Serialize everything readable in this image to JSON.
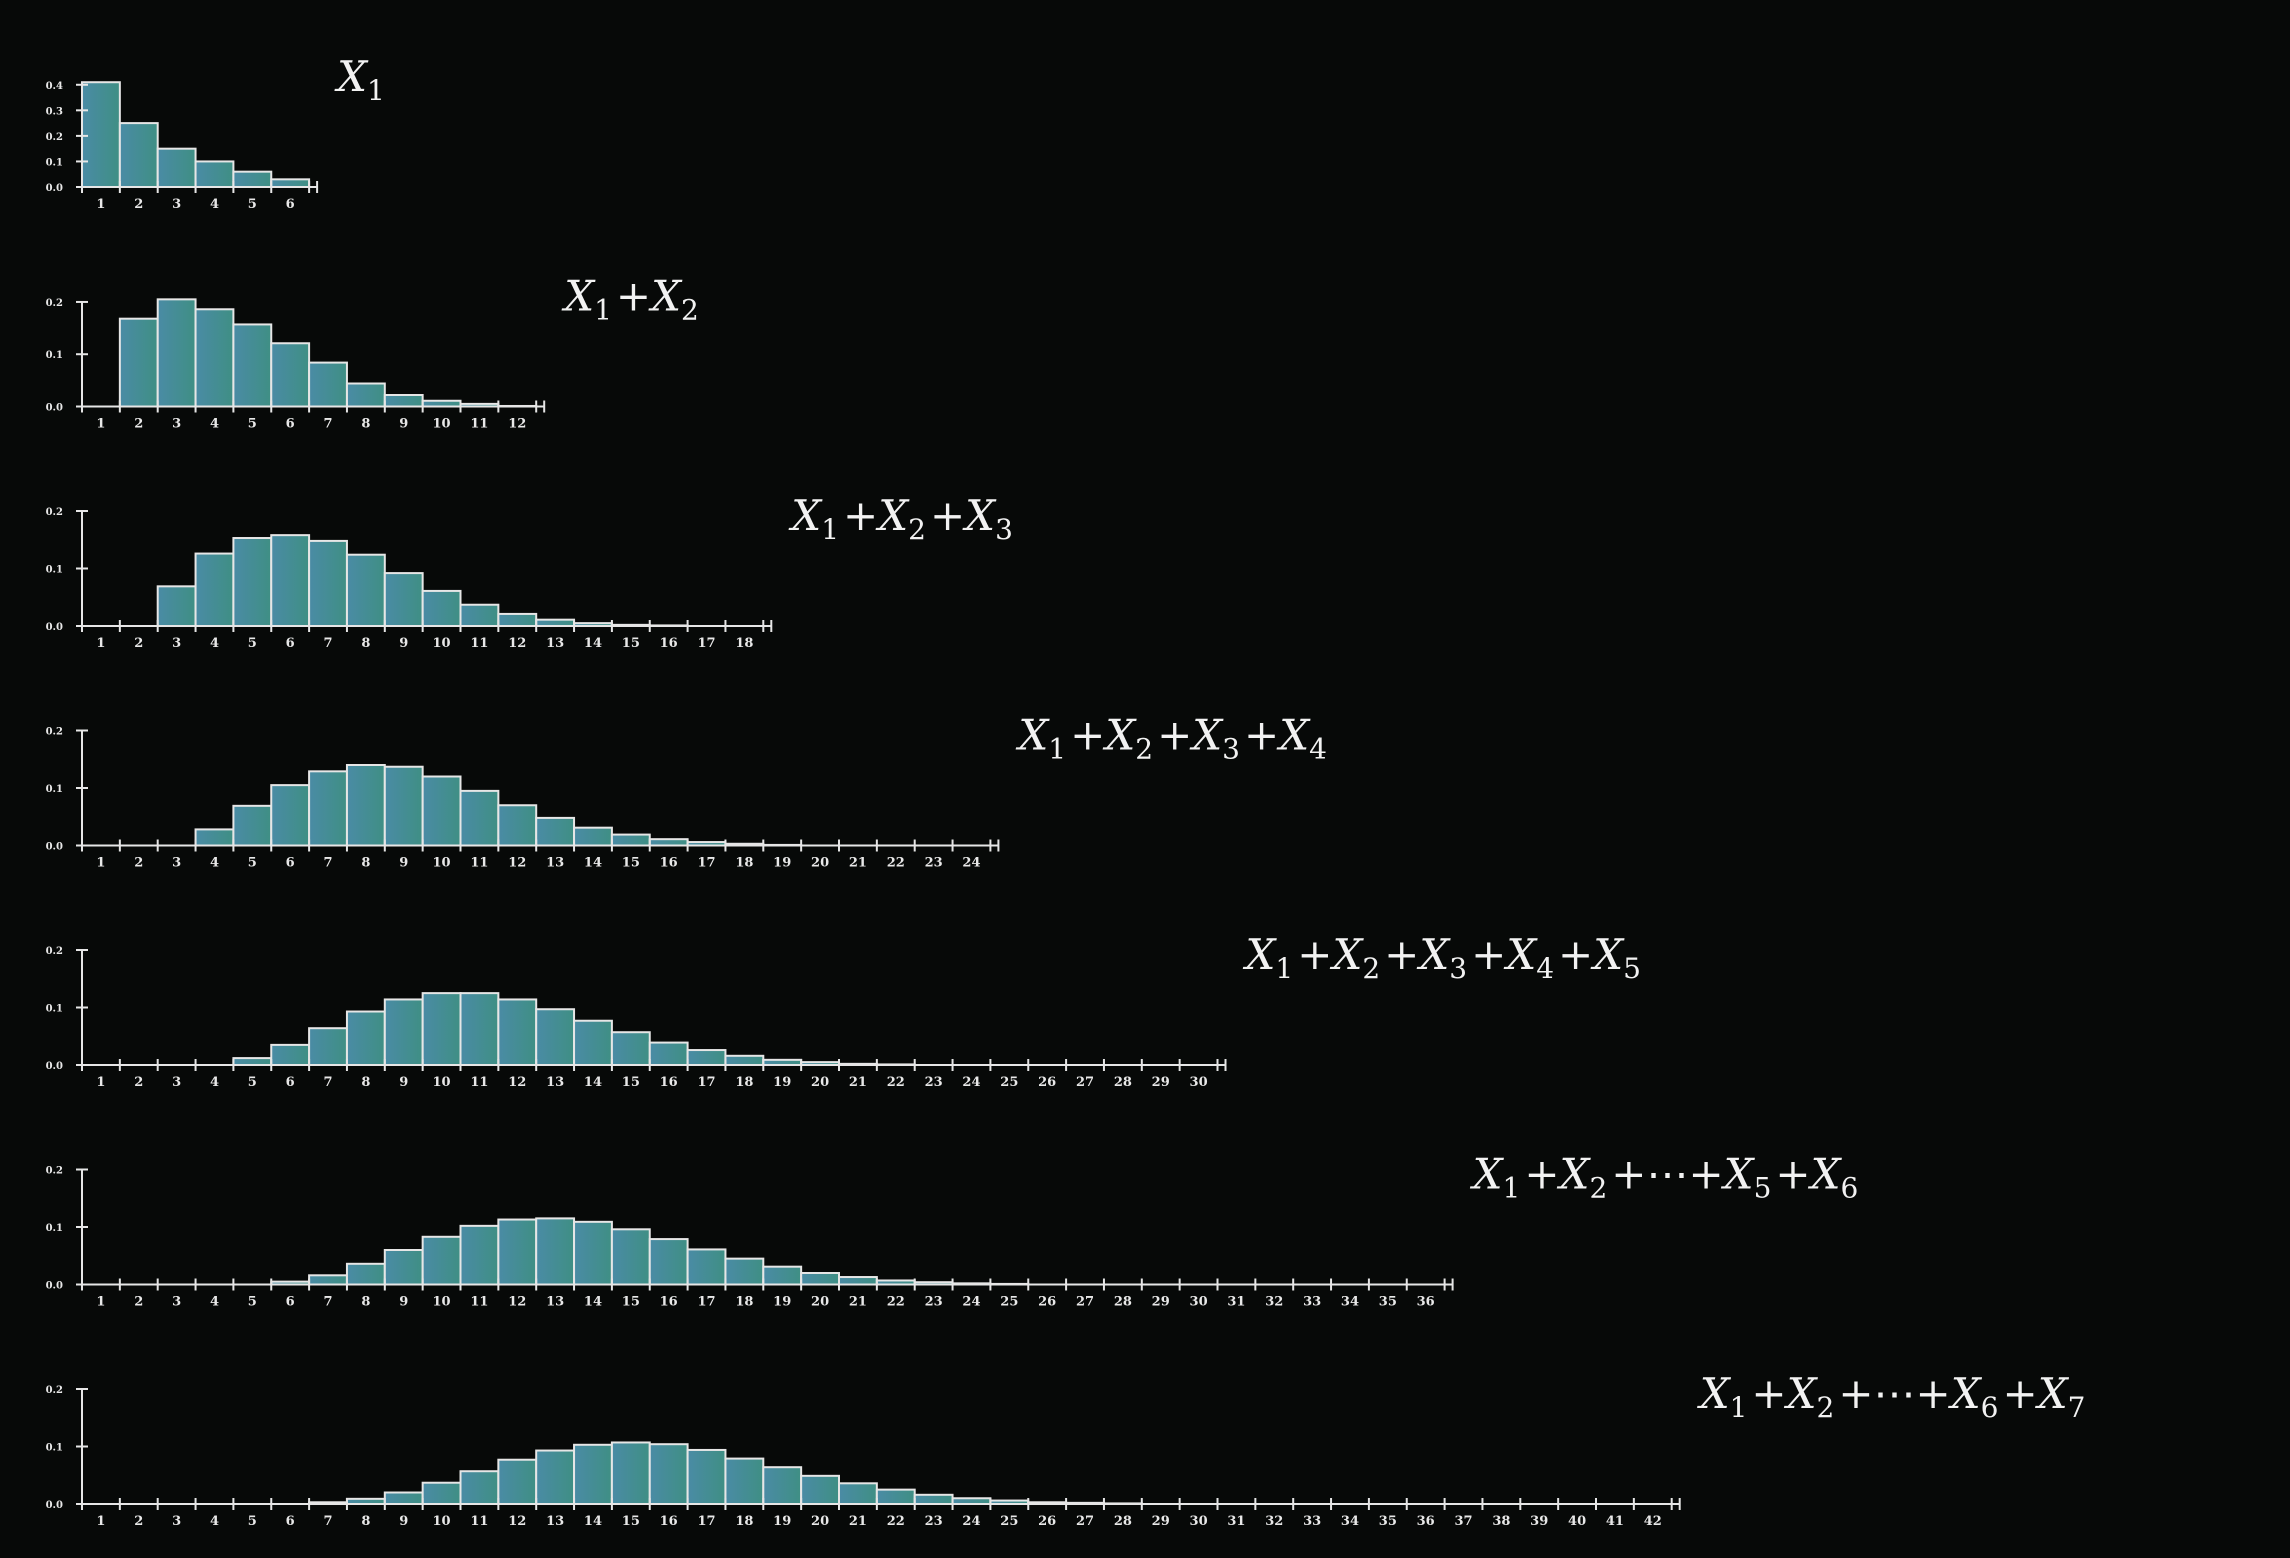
{
  "chart_data": [
    {
      "type": "bar",
      "title": "X₁",
      "title_parts": [
        {
          "t": "X",
          "k": "var"
        },
        {
          "t": "1",
          "k": "sub"
        }
      ],
      "categories": [
        "1",
        "2",
        "3",
        "4",
        "5",
        "6"
      ],
      "values": [
        0.41,
        0.25,
        0.15,
        0.1,
        0.06,
        0.03
      ],
      "ylim": [
        0,
        0.45
      ],
      "yticks": [
        "0.0",
        "0.1",
        "0.2",
        "0.3",
        "0.4"
      ],
      "ytick_values": [
        0.0,
        0.1,
        0.2,
        0.3,
        0.4
      ]
    },
    {
      "type": "bar",
      "title": "X₁+X₂",
      "title_parts": [
        {
          "t": "X",
          "k": "var"
        },
        {
          "t": "1",
          "k": "sub"
        },
        {
          "t": "+",
          "k": "op"
        },
        {
          "t": "X",
          "k": "var"
        },
        {
          "t": "2",
          "k": "sub"
        }
      ],
      "categories": [
        "1",
        "2",
        "3",
        "4",
        "5",
        "6",
        "7",
        "8",
        "9",
        "10",
        "11",
        "12"
      ],
      "values": [
        0.0,
        0.168,
        0.205,
        0.186,
        0.157,
        0.121,
        0.084,
        0.044,
        0.022,
        0.011,
        0.005,
        0.001
      ],
      "ylim": [
        0,
        0.22
      ],
      "yticks": [
        "0.0",
        "0.1",
        "0.2"
      ],
      "ytick_values": [
        0.0,
        0.1,
        0.2
      ]
    },
    {
      "type": "bar",
      "title": "X₁+X₂+X₃",
      "title_parts": [
        {
          "t": "X",
          "k": "var"
        },
        {
          "t": "1",
          "k": "sub"
        },
        {
          "t": "+",
          "k": "op"
        },
        {
          "t": "X",
          "k": "var"
        },
        {
          "t": "2",
          "k": "sub"
        },
        {
          "t": "+",
          "k": "op"
        },
        {
          "t": "X",
          "k": "var"
        },
        {
          "t": "3",
          "k": "sub"
        }
      ],
      "categories": [
        "1",
        "2",
        "3",
        "4",
        "5",
        "6",
        "7",
        "8",
        "9",
        "10",
        "11",
        "12",
        "13",
        "14",
        "15",
        "16",
        "17",
        "18"
      ],
      "values": [
        0.0,
        0.0,
        0.069,
        0.126,
        0.153,
        0.158,
        0.148,
        0.124,
        0.092,
        0.061,
        0.037,
        0.021,
        0.011,
        0.005,
        0.002,
        0.001,
        0.0,
        0.0
      ],
      "ylim": [
        0,
        0.2
      ],
      "yticks": [
        "0.0",
        "0.1",
        "0.2"
      ],
      "ytick_values": [
        0.0,
        0.1,
        0.2
      ]
    },
    {
      "type": "bar",
      "title": "X₁+X₂+X₃+X₄",
      "title_parts": [
        {
          "t": "X",
          "k": "var"
        },
        {
          "t": "1",
          "k": "sub"
        },
        {
          "t": "+",
          "k": "op"
        },
        {
          "t": "X",
          "k": "var"
        },
        {
          "t": "2",
          "k": "sub"
        },
        {
          "t": "+",
          "k": "op"
        },
        {
          "t": "X",
          "k": "var"
        },
        {
          "t": "3",
          "k": "sub"
        },
        {
          "t": "+",
          "k": "op"
        },
        {
          "t": "X",
          "k": "var"
        },
        {
          "t": "4",
          "k": "sub"
        }
      ],
      "categories": [
        "1",
        "2",
        "3",
        "4",
        "5",
        "6",
        "7",
        "8",
        "9",
        "10",
        "11",
        "12",
        "13",
        "14",
        "15",
        "16",
        "17",
        "18",
        "19",
        "20",
        "21",
        "22",
        "23",
        "24"
      ],
      "values": [
        0.0,
        0.0,
        0.0,
        0.028,
        0.069,
        0.105,
        0.129,
        0.14,
        0.137,
        0.12,
        0.095,
        0.07,
        0.048,
        0.031,
        0.019,
        0.011,
        0.006,
        0.003,
        0.001,
        0.0,
        0.0,
        0.0,
        0.0,
        0.0
      ],
      "ylim": [
        0,
        0.2
      ],
      "yticks": [
        "0.0",
        "0.1",
        "0.2"
      ],
      "ytick_values": [
        0.0,
        0.1,
        0.2
      ]
    },
    {
      "type": "bar",
      "title": "X₁+X₂+X₃+X₄+X₅",
      "title_parts": [
        {
          "t": "X",
          "k": "var"
        },
        {
          "t": "1",
          "k": "sub"
        },
        {
          "t": "+",
          "k": "op"
        },
        {
          "t": "X",
          "k": "var"
        },
        {
          "t": "2",
          "k": "sub"
        },
        {
          "t": "+",
          "k": "op"
        },
        {
          "t": "X",
          "k": "var"
        },
        {
          "t": "3",
          "k": "sub"
        },
        {
          "t": "+",
          "k": "op"
        },
        {
          "t": "X",
          "k": "var"
        },
        {
          "t": "4",
          "k": "sub"
        },
        {
          "t": "+",
          "k": "op"
        },
        {
          "t": "X",
          "k": "var"
        },
        {
          "t": "5",
          "k": "sub"
        }
      ],
      "categories": [
        "1",
        "2",
        "3",
        "4",
        "5",
        "6",
        "7",
        "8",
        "9",
        "10",
        "11",
        "12",
        "13",
        "14",
        "15",
        "16",
        "17",
        "18",
        "19",
        "20",
        "21",
        "22",
        "23",
        "24",
        "25",
        "26",
        "27",
        "28",
        "29",
        "30"
      ],
      "values": [
        0.0,
        0.0,
        0.0,
        0.0,
        0.012,
        0.035,
        0.064,
        0.093,
        0.114,
        0.125,
        0.125,
        0.114,
        0.097,
        0.077,
        0.057,
        0.039,
        0.026,
        0.016,
        0.009,
        0.005,
        0.002,
        0.001,
        0.0,
        0.0,
        0.0,
        0.0,
        0.0,
        0.0,
        0.0,
        0.0
      ],
      "ylim": [
        0,
        0.2
      ],
      "yticks": [
        "0.0",
        "0.1",
        "0.2"
      ],
      "ytick_values": [
        0.0,
        0.1,
        0.2
      ]
    },
    {
      "type": "bar",
      "title": "X₁+X₂+⋯+X₅+X₆",
      "title_parts": [
        {
          "t": "X",
          "k": "var"
        },
        {
          "t": "1",
          "k": "sub"
        },
        {
          "t": "+",
          "k": "op"
        },
        {
          "t": "X",
          "k": "var"
        },
        {
          "t": "2",
          "k": "sub"
        },
        {
          "t": "+⋯+",
          "k": "op"
        },
        {
          "t": "X",
          "k": "var"
        },
        {
          "t": "5",
          "k": "sub"
        },
        {
          "t": "+",
          "k": "op"
        },
        {
          "t": "X",
          "k": "var"
        },
        {
          "t": "6",
          "k": "sub"
        }
      ],
      "categories": [
        "1",
        "2",
        "3",
        "4",
        "5",
        "6",
        "7",
        "8",
        "9",
        "10",
        "11",
        "12",
        "13",
        "14",
        "15",
        "16",
        "17",
        "18",
        "19",
        "20",
        "21",
        "22",
        "23",
        "24",
        "25",
        "26",
        "27",
        "28",
        "29",
        "30",
        "31",
        "32",
        "33",
        "34",
        "35",
        "36"
      ],
      "values": [
        0.0,
        0.0,
        0.0,
        0.0,
        0.0,
        0.005,
        0.016,
        0.036,
        0.06,
        0.083,
        0.102,
        0.113,
        0.115,
        0.109,
        0.096,
        0.079,
        0.061,
        0.045,
        0.031,
        0.02,
        0.013,
        0.007,
        0.004,
        0.002,
        0.001,
        0.0,
        0.0,
        0.0,
        0.0,
        0.0,
        0.0,
        0.0,
        0.0,
        0.0,
        0.0,
        0.0
      ],
      "ylim": [
        0,
        0.2
      ],
      "yticks": [
        "0.0",
        "0.1",
        "0.2"
      ],
      "ytick_values": [
        0.0,
        0.1,
        0.2
      ]
    },
    {
      "type": "bar",
      "title": "X₁+X₂+⋯+X₆+X₇",
      "title_parts": [
        {
          "t": "X",
          "k": "var"
        },
        {
          "t": "1",
          "k": "sub"
        },
        {
          "t": "+",
          "k": "op"
        },
        {
          "t": "X",
          "k": "var"
        },
        {
          "t": "2",
          "k": "sub"
        },
        {
          "t": "+⋯+",
          "k": "op"
        },
        {
          "t": "X",
          "k": "var"
        },
        {
          "t": "6",
          "k": "sub"
        },
        {
          "t": "+",
          "k": "op"
        },
        {
          "t": "X",
          "k": "var"
        },
        {
          "t": "7",
          "k": "sub"
        }
      ],
      "categories": [
        "1",
        "2",
        "3",
        "4",
        "5",
        "6",
        "7",
        "8",
        "9",
        "10",
        "11",
        "12",
        "13",
        "14",
        "15",
        "16",
        "17",
        "18",
        "19",
        "20",
        "21",
        "22",
        "23",
        "24",
        "25",
        "26",
        "27",
        "28",
        "29",
        "30",
        "31",
        "32",
        "33",
        "34",
        "35",
        "36",
        "37",
        "38",
        "39",
        "40",
        "41",
        "42"
      ],
      "values": [
        0.0,
        0.0,
        0.0,
        0.0,
        0.0,
        0.0,
        0.003,
        0.009,
        0.02,
        0.037,
        0.057,
        0.077,
        0.093,
        0.103,
        0.107,
        0.104,
        0.094,
        0.079,
        0.064,
        0.049,
        0.036,
        0.025,
        0.016,
        0.01,
        0.006,
        0.003,
        0.002,
        0.001,
        0.0,
        0.0,
        0.0,
        0.0,
        0.0,
        0.0,
        0.0,
        0.0,
        0.0,
        0.0,
        0.0,
        0.0,
        0.0,
        0.0
      ],
      "ylim": [
        0,
        0.2
      ],
      "yticks": [
        "0.0",
        "0.1",
        "0.2"
      ],
      "ytick_values": [
        0.0,
        0.1,
        0.2
      ]
    }
  ],
  "style": {
    "background": "#070908",
    "axis_color": "#e6e6e6",
    "bar_stroke": "#e6e6e6",
    "bar_fill_start": "#4a8ba5",
    "bar_fill_end": "#3f8f84",
    "text_color": "#f0f0f0"
  }
}
